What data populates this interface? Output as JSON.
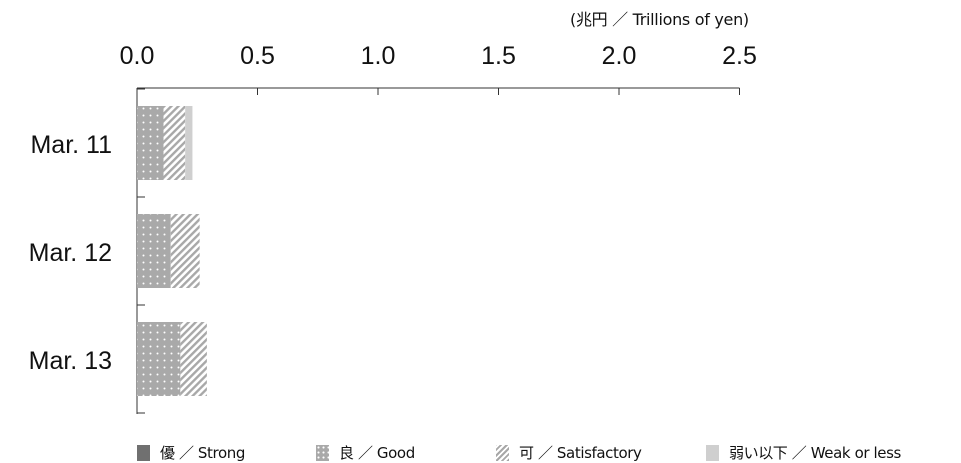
{
  "unit_label": "(兆円 ／ Trillions of yen)",
  "legend": [
    {
      "key": "strong",
      "label": "優 ／ Strong"
    },
    {
      "key": "good",
      "label": "良 ／ Good"
    },
    {
      "key": "satisfactory",
      "label": "可 ／ Satisfactory"
    },
    {
      "key": "weak",
      "label": "弱い以下 ／ Weak or less"
    }
  ],
  "chart_data": {
    "type": "bar",
    "orientation": "horizontal",
    "stacked": true,
    "categories": [
      "Mar. 11",
      "Mar. 12",
      "Mar. 13"
    ],
    "series": [
      {
        "name": "優 ／ Strong",
        "values": [
          0.0,
          0.0,
          0.0
        ],
        "color": "#707070"
      },
      {
        "name": "良 ／ Good",
        "values": [
          0.11,
          0.14,
          0.18
        ],
        "color": "#a9a9a9"
      },
      {
        "name": "可 ／ Satisfactory",
        "values": [
          0.09,
          0.12,
          0.11
        ],
        "color": "#a8a8a8"
      },
      {
        "name": "弱い以下 ／ Weak or less",
        "values": [
          0.03,
          0.0,
          0.0
        ],
        "color": "#cfcfcf"
      }
    ],
    "xlim": [
      0,
      2.5
    ],
    "xticks": [
      "0.0",
      "0.5",
      "1.0",
      "1.5",
      "2.0",
      "2.5"
    ],
    "xlabel": "",
    "ylabel": "",
    "grid": false,
    "legend_position": "bottom"
  }
}
